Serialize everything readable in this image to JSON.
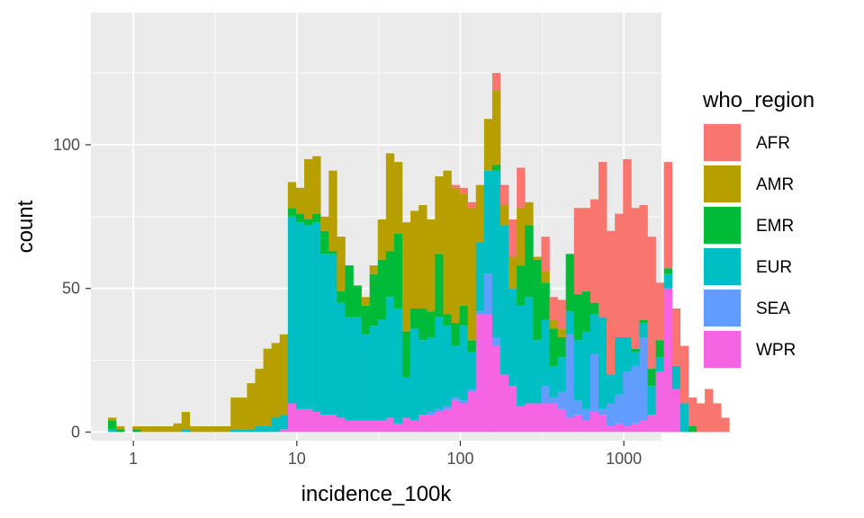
{
  "chart_data": {
    "type": "bar",
    "subtype": "stacked-histogram",
    "title": "",
    "xlabel": "incidence_100k",
    "ylabel": "count",
    "x_scale": "log10",
    "xlim": [
      0.55,
      1700
    ],
    "ylim": [
      -3,
      146
    ],
    "x_ticks": [
      1,
      10,
      100,
      1000
    ],
    "x_tick_labels": [
      "1",
      "10",
      "100",
      "1000"
    ],
    "y_ticks": [
      0,
      50,
      100
    ],
    "y_tick_labels": [
      "0",
      "50",
      "100"
    ],
    "grid": true,
    "legend": {
      "title": "who_region",
      "position": "right",
      "entries": [
        "AFR",
        "AMR",
        "EMR",
        "EUR",
        "SEA",
        "WPR"
      ]
    },
    "colors": {
      "AFR": "#F8766D",
      "AMR": "#B79F00",
      "EMR": "#00BA38",
      "EUR": "#00BFC4",
      "SEA": "#619CFF",
      "WPR": "#F564E3",
      "panel": "#EBEBEB",
      "grid_major": "#FFFFFF"
    },
    "bin_start": 0.7,
    "bin_width_log10": 0.05,
    "series_order": [
      "WPR",
      "SEA",
      "EUR",
      "EMR",
      "AMR",
      "AFR"
    ],
    "series": [
      {
        "name": "WPR",
        "values": [
          0,
          0,
          0,
          0,
          0,
          0,
          0,
          0,
          0,
          0,
          0,
          0,
          0,
          0,
          0,
          0,
          0,
          0,
          0,
          0,
          0,
          1,
          10,
          8,
          8,
          7,
          6,
          6,
          5,
          4,
          4,
          4,
          4,
          4,
          5,
          3,
          5,
          4,
          6,
          6,
          7,
          8,
          11,
          10,
          14,
          41,
          41,
          30,
          20,
          16,
          9,
          10,
          10,
          10,
          10,
          8,
          5,
          6,
          4,
          7,
          6,
          2,
          3,
          2,
          3,
          4,
          6,
          21,
          50,
          15,
          0,
          0,
          0,
          0,
          0,
          0,
          0,
          0,
          0,
          0,
          0
        ]
      },
      {
        "name": "SEA",
        "values": [
          0,
          0,
          0,
          0,
          0,
          0,
          0,
          0,
          0,
          0,
          0,
          0,
          0,
          0,
          0,
          0,
          0,
          0,
          0,
          0,
          0,
          0,
          0,
          0,
          0,
          0,
          0,
          0,
          0,
          0,
          0,
          0,
          0,
          0,
          0,
          0,
          0,
          0,
          0,
          1,
          1,
          1,
          1,
          1,
          1,
          1,
          14,
          3,
          0,
          0,
          0,
          0,
          0,
          6,
          2,
          6,
          29,
          5,
          4,
          20,
          2,
          8,
          10,
          19,
          20,
          29,
          0,
          0,
          0,
          0,
          0,
          0,
          0,
          0,
          0,
          0,
          0,
          0,
          0,
          0,
          0
        ]
      },
      {
        "name": "EUR",
        "values": [
          1,
          0,
          0,
          0,
          0,
          0,
          0,
          0,
          0,
          1,
          0,
          0,
          0,
          0,
          0,
          1,
          1,
          1,
          2,
          2,
          5,
          5,
          65,
          65,
          64,
          66,
          56,
          56,
          40,
          36,
          36,
          30,
          33,
          35,
          42,
          40,
          14,
          32,
          26,
          26,
          32,
          28,
          18,
          26,
          13,
          24,
          36,
          58,
          52,
          34,
          35,
          37,
          22,
          23,
          11,
          12,
          8,
          21,
          27,
          14,
          32,
          10,
          20,
          12,
          5,
          5,
          10,
          5,
          5,
          8,
          10,
          0,
          0,
          0,
          0,
          0,
          0,
          0,
          0,
          0,
          0
        ]
      },
      {
        "name": "EMR",
        "values": [
          3,
          1,
          0,
          1,
          0,
          0,
          0,
          0,
          0,
          0,
          0,
          0,
          0,
          0,
          0,
          0,
          0,
          0,
          0,
          0,
          0,
          0,
          3,
          3,
          2,
          3,
          8,
          1,
          4,
          18,
          11,
          10,
          18,
          21,
          16,
          26,
          16,
          7,
          11,
          9,
          22,
          4,
          8,
          7,
          4,
          0,
          0,
          2,
          0,
          0,
          14,
          25,
          28,
          13,
          13,
          7,
          20,
          16,
          14,
          4,
          0,
          0,
          0,
          0,
          1,
          1,
          6,
          6,
          2,
          0,
          0,
          2,
          0,
          0,
          0,
          0,
          0,
          0,
          0,
          0,
          0
        ]
      },
      {
        "name": "AMR",
        "values": [
          1,
          1,
          0,
          1,
          2,
          2,
          2,
          2,
          3,
          6,
          2,
          2,
          2,
          2,
          2,
          11,
          11,
          16,
          20,
          27,
          26,
          28,
          9,
          9,
          21,
          20,
          5,
          28,
          19,
          0,
          0,
          3,
          3,
          14,
          34,
          25,
          38,
          34,
          36,
          32,
          27,
          50,
          47,
          39,
          46,
          20,
          18,
          26,
          7,
          11,
          20,
          8,
          1,
          4,
          3,
          3,
          0,
          0,
          0,
          0,
          0,
          0,
          0,
          0,
          0,
          0,
          0,
          0,
          0,
          0,
          0,
          0,
          0,
          0,
          0,
          0,
          0,
          0,
          0,
          0,
          0
        ]
      },
      {
        "name": "AFR",
        "values": [
          0,
          0,
          0,
          0,
          0,
          0,
          0,
          0,
          0,
          0,
          0,
          0,
          0,
          0,
          0,
          0,
          0,
          0,
          0,
          0,
          0,
          0,
          0,
          0,
          0,
          0,
          0,
          0,
          0,
          0,
          0,
          0,
          0,
          0,
          0,
          0,
          0,
          0,
          0,
          0,
          0,
          0,
          1,
          2,
          2,
          0,
          0,
          6,
          7,
          13,
          14,
          0,
          0,
          12,
          8,
          10,
          0,
          30,
          29,
          36,
          54,
          50,
          43,
          62,
          49,
          40,
          46,
          20,
          37,
          20,
          20,
          10,
          10,
          15,
          10,
          5,
          0,
          0,
          0,
          0,
          0
        ]
      }
    ]
  }
}
